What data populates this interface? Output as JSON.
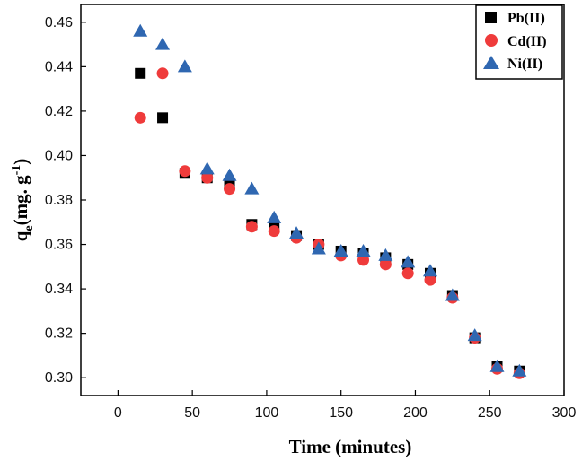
{
  "chart_data": {
    "type": "scatter",
    "title": "",
    "xlabel": "Time (minutes)",
    "ylabel": {
      "base": "q",
      "sub": "e",
      "mid": "(mg. g",
      "sup": "-1",
      "end": ")"
    },
    "xlim": [
      -25,
      300
    ],
    "ylim": [
      0.292,
      0.468
    ],
    "xticks": [
      0,
      50,
      100,
      150,
      200,
      250,
      300
    ],
    "xtick_labels": [
      "0",
      "50",
      "100",
      "150",
      "200",
      "250",
      "300"
    ],
    "yticks": [
      0.3,
      0.32,
      0.34,
      0.36,
      0.38,
      0.4,
      0.42,
      0.44,
      0.46
    ],
    "ytick_labels": [
      "0.30",
      "0.32",
      "0.34",
      "0.36",
      "0.38",
      "0.40",
      "0.42",
      "0.44",
      "0.46"
    ],
    "legend_position": "top-right",
    "series": [
      {
        "name": "Pb(II)",
        "marker": "square",
        "color": "#000000",
        "x": [
          15,
          30,
          45,
          60,
          75,
          90,
          105,
          120,
          135,
          150,
          165,
          180,
          195,
          210,
          225,
          240,
          255,
          270
        ],
        "y": [
          0.437,
          0.417,
          0.392,
          0.39,
          0.387,
          0.369,
          0.368,
          0.364,
          0.36,
          0.357,
          0.356,
          0.354,
          0.351,
          0.347,
          0.337,
          0.318,
          0.305,
          0.303
        ]
      },
      {
        "name": "Cd(II)",
        "marker": "circle",
        "color": "#ef3b3b",
        "x": [
          15,
          30,
          45,
          60,
          75,
          90,
          105,
          120,
          135,
          150,
          165,
          180,
          195,
          210,
          225,
          240,
          255,
          270
        ],
        "y": [
          0.417,
          0.437,
          0.393,
          0.39,
          0.385,
          0.368,
          0.366,
          0.363,
          0.36,
          0.355,
          0.353,
          0.351,
          0.347,
          0.344,
          0.336,
          0.318,
          0.304,
          0.302
        ]
      },
      {
        "name": "Ni(II)",
        "marker": "triangle",
        "color": "#2f67b1",
        "x": [
          15,
          30,
          45,
          60,
          75,
          90,
          105,
          120,
          135,
          150,
          165,
          180,
          195,
          210,
          225,
          240,
          255,
          270
        ],
        "y": [
          0.456,
          0.45,
          0.44,
          0.394,
          0.391,
          0.385,
          0.372,
          0.365,
          0.358,
          0.357,
          0.357,
          0.355,
          0.352,
          0.348,
          0.337,
          0.319,
          0.305,
          0.303
        ]
      }
    ]
  }
}
